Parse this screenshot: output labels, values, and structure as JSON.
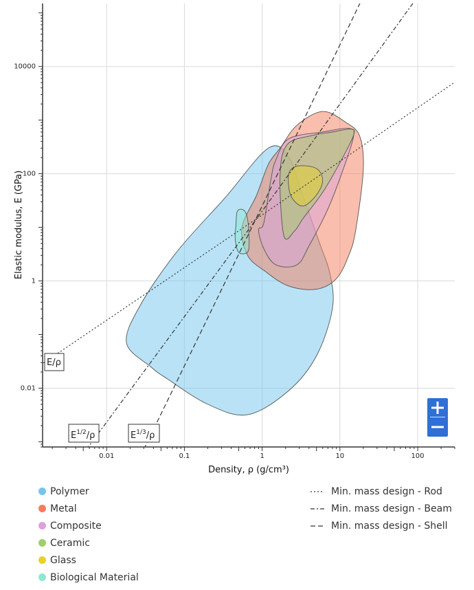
{
  "chart_data": {
    "type": "scatter",
    "xlabel": "Density, ρ (g/cm³)",
    "ylabel": "Elastic modulus, E (GPa)",
    "x_scale": "log",
    "y_scale": "log",
    "xlim": [
      0.0015,
      300
    ],
    "ylim": [
      0.0008,
      150000
    ],
    "x_ticks": [
      0.01,
      0.1,
      1,
      10,
      100
    ],
    "x_tick_labels": [
      "0.01",
      "0.1",
      "1",
      "10",
      "100"
    ],
    "y_ticks": [
      0.01,
      1,
      100,
      10000
    ],
    "y_tick_labels": [
      "0.01",
      "1",
      "100",
      "10000"
    ],
    "grid": true,
    "legend_position": "bottom",
    "regions": [
      {
        "name": "Polymer",
        "color": "#74c5ee",
        "outline": [
          [
            0.037,
            0.025
          ],
          [
            0.018,
            0.07
          ],
          [
            0.027,
            0.35
          ],
          [
            0.08,
            3.5
          ],
          [
            0.33,
            35
          ],
          [
            1.2,
            300
          ],
          [
            2.2,
            200
          ],
          [
            3.3,
            40
          ],
          [
            5.5,
            5
          ],
          [
            7.5,
            1.3
          ],
          [
            8,
            0.3
          ],
          [
            5,
            0.04
          ],
          [
            2.2,
            0.009
          ],
          [
            0.65,
            0.0032
          ],
          [
            0.2,
            0.005
          ],
          [
            0.06,
            0.015
          ],
          [
            0.037,
            0.025
          ]
        ]
      },
      {
        "name": "Metal",
        "color": "#f47e5c",
        "outline": [
          [
            0.55,
            10
          ],
          [
            0.85,
            40
          ],
          [
            1.2,
            150
          ],
          [
            1.7,
            300
          ],
          [
            2.8,
            800
          ],
          [
            6,
            1450
          ],
          [
            12,
            900
          ],
          [
            18,
            500
          ],
          [
            20,
            120
          ],
          [
            16,
            9
          ],
          [
            13,
            3
          ],
          [
            9,
            1.1
          ],
          [
            5,
            0.7
          ],
          [
            2.2,
            0.8
          ],
          [
            1.1,
            1.5
          ],
          [
            0.65,
            3
          ],
          [
            0.55,
            10
          ]
        ]
      },
      {
        "name": "Composite",
        "color": "#d9a3d9",
        "outline": [
          [
            1.05,
            12
          ],
          [
            1.3,
            80
          ],
          [
            1.5,
            180
          ],
          [
            2.2,
            450
          ],
          [
            6,
            600
          ],
          [
            13,
            700
          ],
          [
            15,
            500
          ],
          [
            11,
            120
          ],
          [
            7,
            22
          ],
          [
            4,
            4.5
          ],
          [
            2.8,
            2
          ],
          [
            1.5,
            2
          ],
          [
            1.05,
            4
          ],
          [
            0.9,
            9
          ],
          [
            1.05,
            12
          ]
        ]
      },
      {
        "name": "Ceramic",
        "color": "#9fce6a",
        "outline": [
          [
            1.9,
            7
          ],
          [
            1.7,
            90
          ],
          [
            2.1,
            350
          ],
          [
            4.5,
            520
          ],
          [
            8,
            600
          ],
          [
            14,
            680
          ],
          [
            15,
            520
          ],
          [
            10,
            160
          ],
          [
            6,
            45
          ],
          [
            3.4,
            15
          ],
          [
            2.6,
            8.5
          ],
          [
            1.9,
            7
          ]
        ]
      },
      {
        "name": "Glass",
        "color": "#e8d22a",
        "outline": [
          [
            2.25,
            110
          ],
          [
            3,
            140
          ],
          [
            5,
            125
          ],
          [
            6,
            75
          ],
          [
            5,
            40
          ],
          [
            3.4,
            25
          ],
          [
            2.5,
            33
          ],
          [
            2.2,
            55
          ],
          [
            2.25,
            110
          ]
        ]
      },
      {
        "name": "Biological Material",
        "color": "#8ce8d2",
        "outline": [
          [
            0.46,
            11
          ],
          [
            0.48,
            20
          ],
          [
            0.58,
            21
          ],
          [
            0.65,
            14
          ],
          [
            0.68,
            5
          ],
          [
            0.64,
            3.4
          ],
          [
            0.5,
            3.4
          ],
          [
            0.45,
            6
          ],
          [
            0.46,
            11
          ]
        ]
      }
    ],
    "guide_lines": [
      {
        "name": "Min. mass design - Rod",
        "label": "E/ρ",
        "power": 1,
        "dash": "dot",
        "points": [
          [
            0.0013,
            0.025
          ],
          [
            1,
            17
          ],
          [
            300,
            5100
          ]
        ]
      },
      {
        "name": "Min. mass design - Beam",
        "label": "E1/2/ρ",
        "power": 2,
        "dash": "dashdot",
        "points": [
          [
            0.0055,
            0.00072
          ],
          [
            1,
            20
          ],
          [
            300,
            1800000
          ]
        ]
      },
      {
        "name": "Min. mass design - Shell",
        "label": "E1/3/ρ",
        "power": 3,
        "dash": "dash",
        "points": [
          [
            0.03,
            0.00072
          ],
          [
            1,
            25
          ],
          [
            300,
            700000000
          ]
        ]
      }
    ]
  },
  "legend": {
    "materials": [
      {
        "label": "Polymer",
        "color": "#74c5ee"
      },
      {
        "label": "Metal",
        "color": "#f47e5c"
      },
      {
        "label": "Composite",
        "color": "#d9a3d9"
      },
      {
        "label": "Ceramic",
        "color": "#9fce6a"
      },
      {
        "label": "Glass",
        "color": "#e8d22a"
      },
      {
        "label": "Biological Material",
        "color": "#8ce8d2"
      }
    ],
    "lines": [
      {
        "label": "Min. mass design - Rod",
        "dash": "dot"
      },
      {
        "label": "Min. mass design - Beam",
        "dash": "dashdot"
      },
      {
        "label": "Min. mass design - Shell",
        "dash": "dash"
      }
    ]
  },
  "annotations": {
    "rod": {
      "base": "E/ρ"
    },
    "beam": {
      "base": "E",
      "sup": "1/2",
      "tail": "/ρ"
    },
    "shell": {
      "base": "E",
      "sup": "1/3",
      "tail": "/ρ"
    }
  },
  "zoom": {
    "plus_icon": "plus-icon",
    "minus_icon": "minus-icon",
    "color": "#2f6fd6"
  }
}
